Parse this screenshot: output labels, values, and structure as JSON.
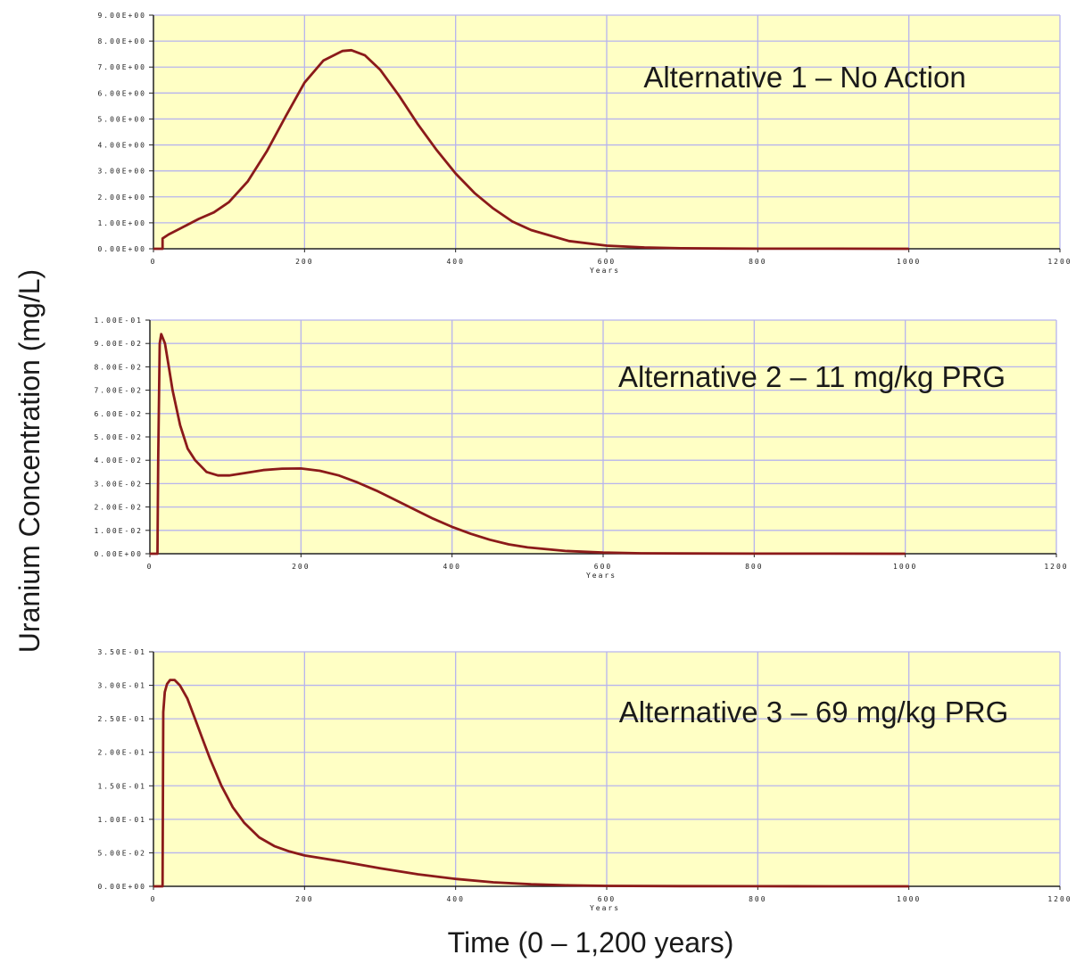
{
  "figure": {
    "ylabel": "Uranium Concentration (mg/L)",
    "xlabel": "Time (0 – 1,200 years)"
  },
  "colors": {
    "plot_bg": "#ffffc5",
    "grid": "#b7b4ee",
    "line": "#8b1a1a",
    "axis": "#222222"
  },
  "chart_data": [
    {
      "type": "line",
      "annotation": "Alternative 1 – No Action",
      "xlabel": "Years",
      "xlim": [
        0,
        1200
      ],
      "xticks": [
        0,
        200,
        400,
        600,
        800,
        1000,
        1200
      ],
      "xtick_labels": [
        "0",
        "200",
        "400",
        "600",
        "800",
        "1000",
        "1200"
      ],
      "ylim": [
        0,
        9
      ],
      "yticks": [
        0,
        1,
        2,
        3,
        4,
        5,
        6,
        7,
        8,
        9
      ],
      "ytick_labels": [
        "0.00E+00",
        "1.00E+00",
        "2.00E+00",
        "3.00E+00",
        "4.00E+00",
        "5.00E+00",
        "6.00E+00",
        "7.00E+00",
        "8.00E+00",
        "9.00E+00"
      ],
      "grid": true,
      "series": [
        {
          "x": [
            0,
            12,
            12,
            20,
            40,
            60,
            80,
            100,
            125,
            150,
            175,
            200,
            225,
            250,
            262,
            280,
            300,
            325,
            350,
            375,
            400,
            425,
            450,
            475,
            500,
            550,
            600,
            650,
            700,
            750,
            800,
            900,
            1000
          ],
          "y": [
            0,
            0,
            0.4,
            0.55,
            0.85,
            1.15,
            1.4,
            1.8,
            2.6,
            3.75,
            5.1,
            6.4,
            7.25,
            7.62,
            7.65,
            7.45,
            6.9,
            5.9,
            4.8,
            3.8,
            2.9,
            2.15,
            1.55,
            1.05,
            0.72,
            0.3,
            0.12,
            0.05,
            0.02,
            0.01,
            0.005,
            0.002,
            0.001
          ]
        }
      ]
    },
    {
      "type": "line",
      "annotation": "Alternative 2 – 11 mg/kg PRG",
      "xlabel": "Years",
      "xlim": [
        0,
        1200
      ],
      "xticks": [
        0,
        200,
        400,
        600,
        800,
        1000,
        1200
      ],
      "xtick_labels": [
        "0",
        "200",
        "400",
        "600",
        "800",
        "1000",
        "1200"
      ],
      "ylim": [
        0,
        0.1
      ],
      "yticks": [
        0,
        0.01,
        0.02,
        0.03,
        0.04,
        0.05,
        0.06,
        0.07,
        0.08,
        0.09,
        0.1
      ],
      "ytick_labels": [
        "0.00E+00",
        "1.00E-02",
        "2.00E-02",
        "3.00E-02",
        "4.00E-02",
        "5.00E-02",
        "6.00E-02",
        "7.00E-02",
        "8.00E-02",
        "9.00E-02",
        "1.00E-01"
      ],
      "grid": true,
      "series": [
        {
          "x": [
            0,
            10,
            11,
            13,
            15,
            20,
            25,
            30,
            40,
            50,
            60,
            75,
            90,
            105,
            125,
            150,
            175,
            200,
            225,
            250,
            275,
            300,
            325,
            350,
            375,
            400,
            425,
            450,
            475,
            500,
            550,
            600,
            650,
            700,
            800,
            900,
            1000
          ],
          "y": [
            0,
            0,
            0.04,
            0.09,
            0.094,
            0.09,
            0.08,
            0.07,
            0.055,
            0.045,
            0.04,
            0.035,
            0.0335,
            0.0335,
            0.0345,
            0.0358,
            0.0364,
            0.0365,
            0.0355,
            0.0335,
            0.0305,
            0.027,
            0.023,
            0.019,
            0.015,
            0.0115,
            0.0085,
            0.006,
            0.004,
            0.0027,
            0.0012,
            0.0005,
            0.0002,
            0.0001,
            5e-05,
            2e-05,
            1e-05
          ]
        }
      ]
    },
    {
      "type": "line",
      "annotation": "Alternative 3 – 69 mg/kg PRG",
      "xlabel": "Years",
      "xlim": [
        0,
        1200
      ],
      "xticks": [
        0,
        200,
        400,
        600,
        800,
        1000,
        1200
      ],
      "xtick_labels": [
        "0",
        "200",
        "400",
        "600",
        "800",
        "1000",
        "1200"
      ],
      "ylim": [
        0,
        0.35
      ],
      "yticks": [
        0,
        0.05,
        0.1,
        0.15,
        0.2,
        0.25,
        0.3,
        0.35
      ],
      "ytick_labels": [
        "0.00E+00",
        "5.00E-02",
        "1.00E-01",
        "1.50E-01",
        "2.00E-01",
        "2.50E-01",
        "3.00E-01",
        "3.50E-01"
      ],
      "grid": true,
      "series": [
        {
          "x": [
            0,
            12,
            13,
            15,
            18,
            22,
            28,
            35,
            45,
            55,
            65,
            75,
            90,
            105,
            120,
            140,
            160,
            180,
            200,
            250,
            300,
            350,
            400,
            450,
            500,
            550,
            600,
            700,
            800,
            900,
            1000
          ],
          "y": [
            0,
            0,
            0.26,
            0.29,
            0.302,
            0.308,
            0.308,
            0.3,
            0.28,
            0.25,
            0.22,
            0.19,
            0.15,
            0.118,
            0.095,
            0.073,
            0.06,
            0.052,
            0.046,
            0.037,
            0.027,
            0.018,
            0.011,
            0.006,
            0.003,
            0.0015,
            0.0007,
            0.0002,
            0.0001,
            5e-05,
            2e-05
          ]
        }
      ]
    }
  ]
}
